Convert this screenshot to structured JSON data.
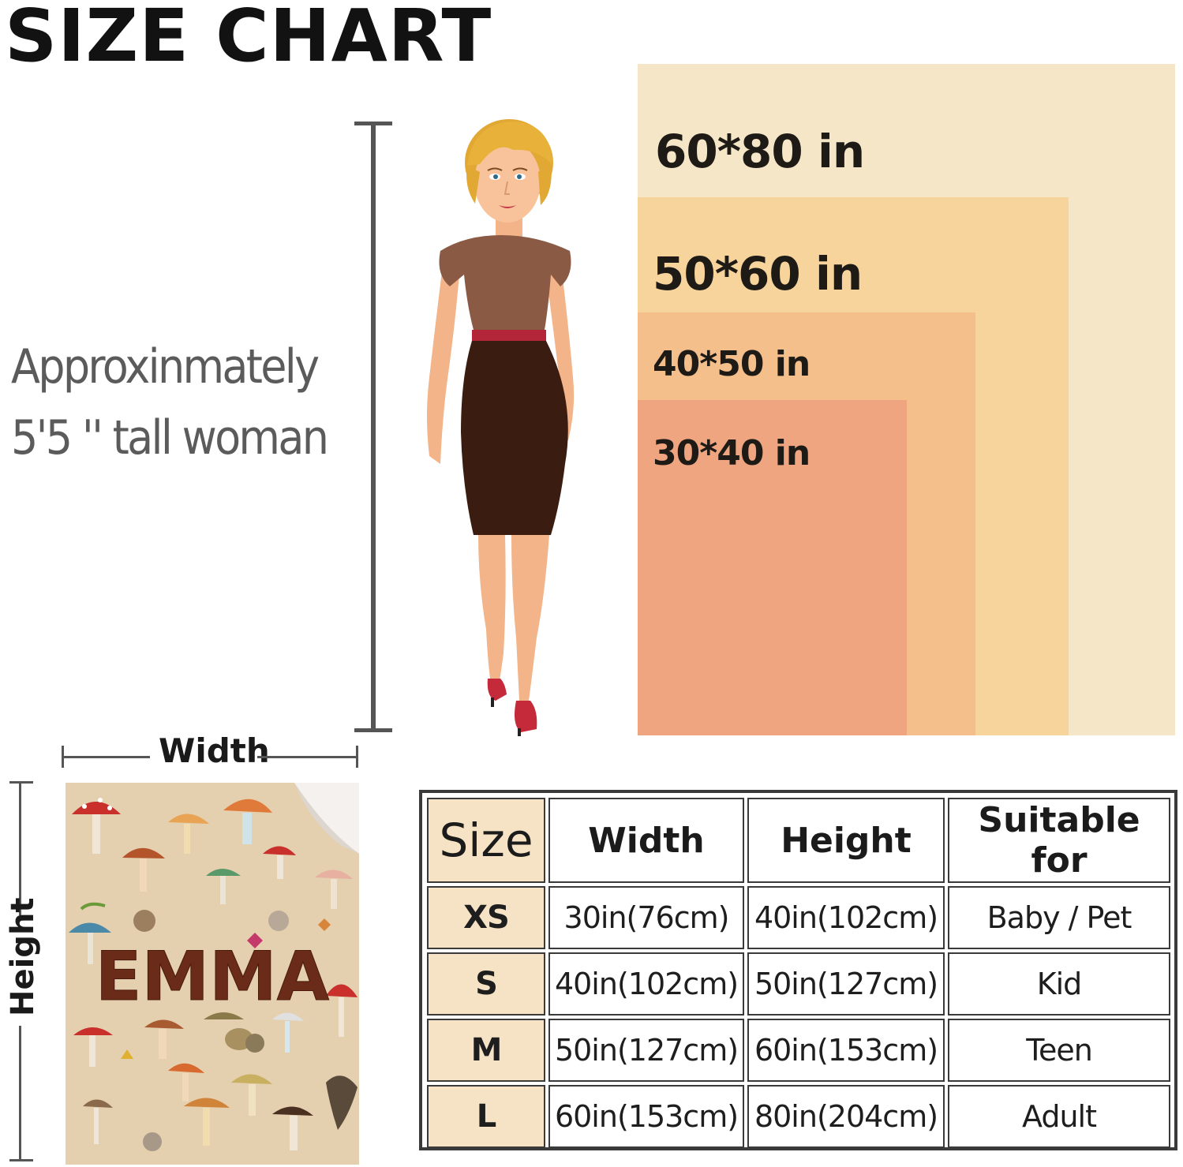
{
  "title": "SIZE CHART",
  "woman_caption": {
    "line1": "Approxinmately",
    "line2": "5'5 '' tall woman"
  },
  "sizes": [
    {
      "label": "60*80 in",
      "color": "#f5e6c8"
    },
    {
      "label": "50*60 in",
      "color": "#f7d49c"
    },
    {
      "label": "40*50 in",
      "color": "#f5bf8c"
    },
    {
      "label": "30*40 in",
      "color": "#efa57f"
    }
  ],
  "rulers": {
    "width": "Width",
    "height": "Height"
  },
  "blanket": {
    "name": "EMMA"
  },
  "table": {
    "headers": [
      "Size",
      "Width",
      "Height",
      "Suitable for"
    ],
    "rows": [
      [
        "XS",
        "30in(76cm)",
        "40in(102cm)",
        "Baby / Pet"
      ],
      [
        "S",
        "40in(102cm)",
        "50in(127cm)",
        "Kid"
      ],
      [
        "M",
        "50in(127cm)",
        "60in(153cm)",
        "Teen"
      ],
      [
        "L",
        "60in(153cm)",
        "80in(204cm)",
        "Adult"
      ]
    ]
  }
}
